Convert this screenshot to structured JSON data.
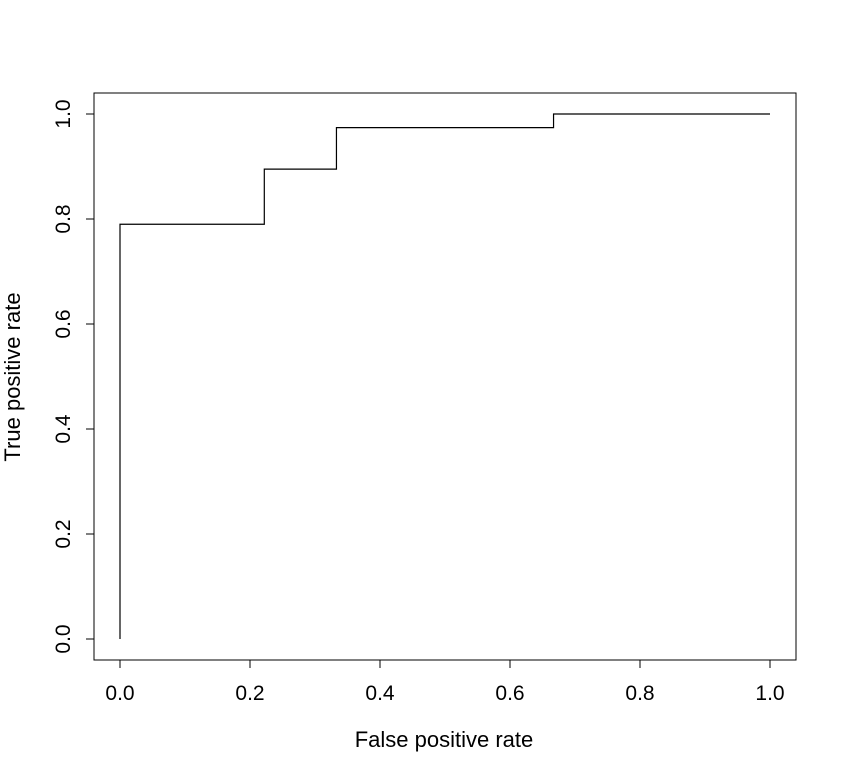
{
  "chart_data": {
    "type": "line",
    "title": "",
    "xlabel": "False positive rate",
    "ylabel": "True positive rate",
    "xlim": [
      0.0,
      1.0
    ],
    "ylim": [
      0.0,
      1.0
    ],
    "grid": false,
    "legend": "none",
    "line_style": "step",
    "line_color": "#000000",
    "x_ticks": [
      "0.0",
      "0.2",
      "0.4",
      "0.6",
      "0.8",
      "1.0"
    ],
    "y_ticks": [
      "0.0",
      "0.2",
      "0.4",
      "0.6",
      "0.8",
      "1.0"
    ],
    "series": [
      {
        "x": [
          0.0,
          0.0,
          0.222,
          0.222,
          0.333,
          0.333,
          0.667,
          0.667,
          1.0
        ],
        "y": [
          0.0,
          0.79,
          0.79,
          0.895,
          0.895,
          0.974,
          0.974,
          1.0,
          1.0
        ]
      }
    ]
  }
}
